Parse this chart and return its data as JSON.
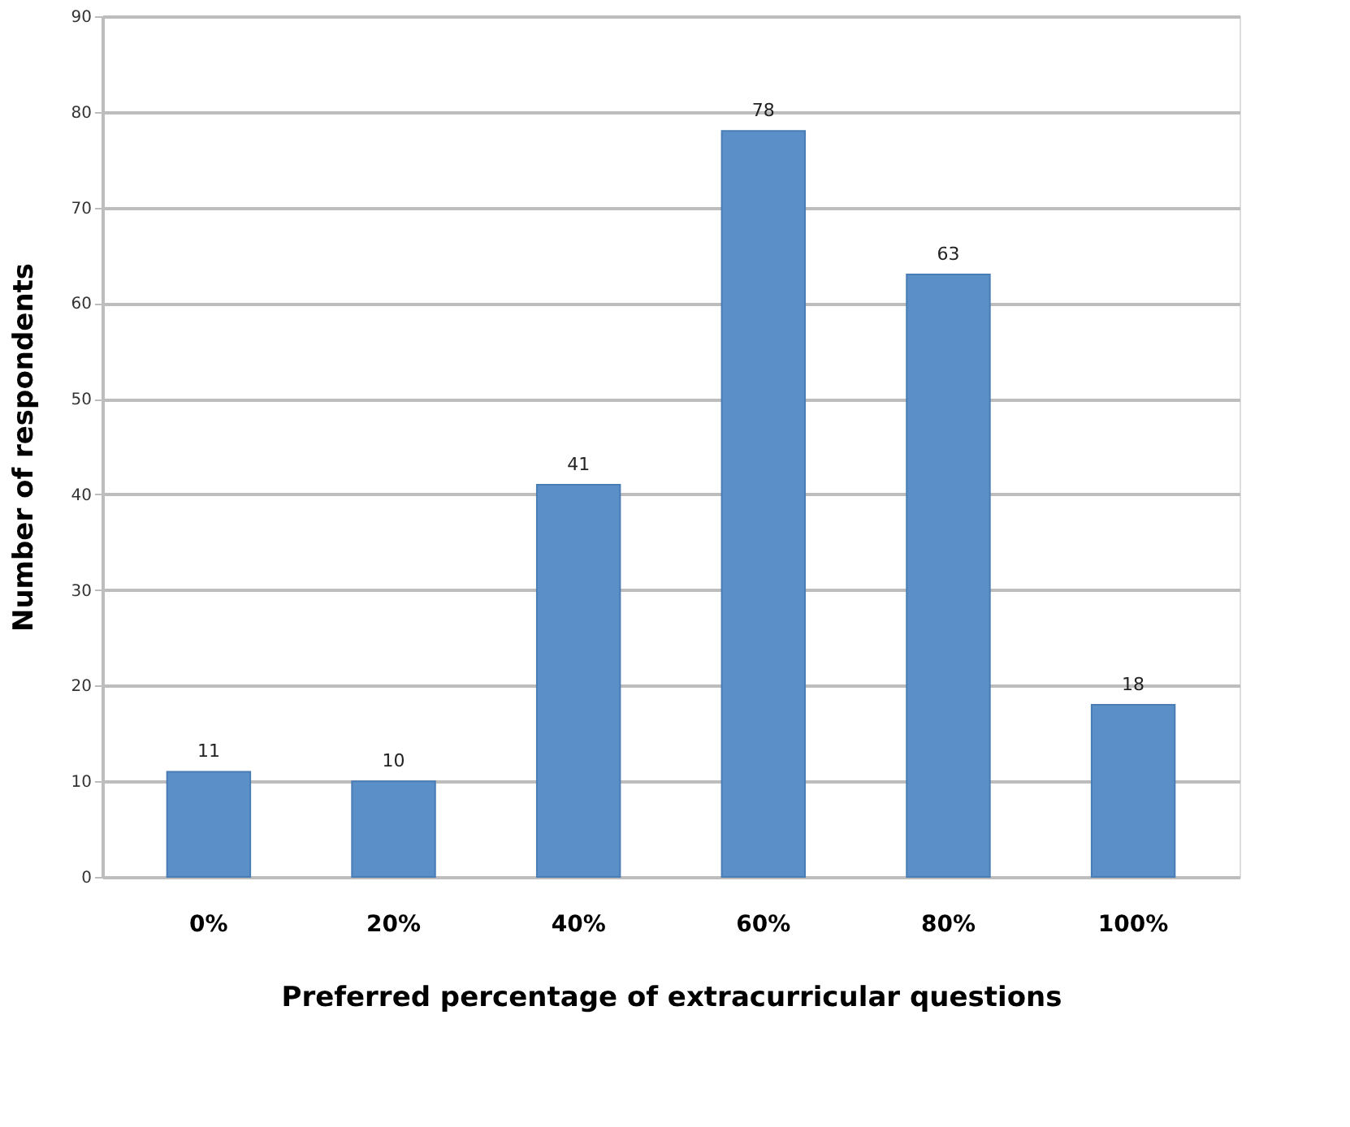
{
  "chart_data": {
    "type": "bar",
    "xlabel": "Preferred percentage of extracurricular questions",
    "ylabel": "Number of respondents",
    "categories": [
      "0%",
      "20%",
      "40%",
      "60%",
      "80%",
      "100%"
    ],
    "values": [
      11,
      10,
      41,
      78,
      63,
      18
    ],
    "color": "#5b8fc7",
    "ylim": [
      0,
      90
    ],
    "yticks": [
      0,
      10,
      20,
      30,
      40,
      50,
      60,
      70,
      80,
      90
    ],
    "grid": "y",
    "data_labels": true
  }
}
